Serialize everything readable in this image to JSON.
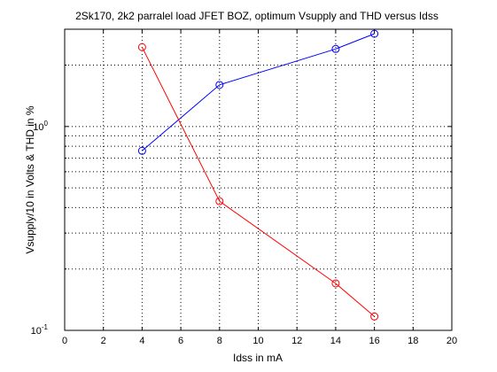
{
  "chart_data": {
    "type": "line",
    "title": "2Sk170, 2k2 parralel load JFET BOZ, optimum Vsupply and THD versus Idss",
    "xlabel": "Idss in mA",
    "ylabel": "Vsupply/10 in Volts & THD in %",
    "xlim": [
      0,
      20
    ],
    "ylim": [
      0.1,
      3
    ],
    "yscale": "log",
    "grid": true,
    "x_ticks": [
      "0",
      "2",
      "4",
      "6",
      "8",
      "10",
      "12",
      "14",
      "16",
      "18",
      "20"
    ],
    "y_ticks": [
      {
        "base": "10",
        "exp": "-1"
      },
      {
        "base": "10",
        "exp": "0"
      }
    ],
    "series": [
      {
        "color": "#0000ff",
        "marker": "circle",
        "x": [
          4,
          8,
          14,
          16
        ],
        "y": [
          0.76,
          1.6,
          2.4,
          2.85
        ]
      },
      {
        "color": "#ff0000",
        "marker": "circle",
        "x": [
          4,
          8,
          14,
          16
        ],
        "y": [
          2.45,
          0.43,
          0.17,
          0.117
        ]
      }
    ]
  }
}
